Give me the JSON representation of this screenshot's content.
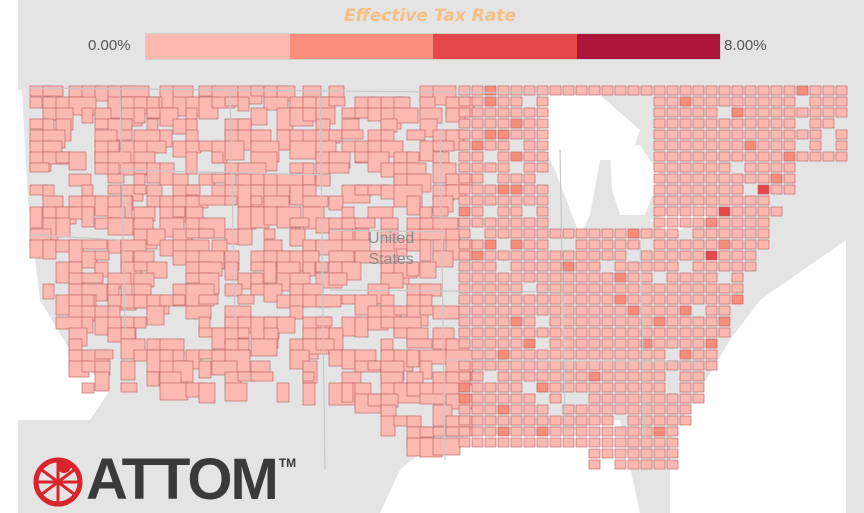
{
  "legend": {
    "title": "Effective Tax Rate",
    "min_label": "0.00%",
    "max_label": "8.00%",
    "colors": [
      "#fcb9b2",
      "#f88d7c",
      "#e4484a",
      "#aa1538"
    ]
  },
  "map": {
    "labels": {
      "country_line1": "United",
      "country_line2": "States"
    },
    "land_color": "#e4e4e4",
    "water_color": "#ffffff",
    "county_stroke": "#b85c5c"
  },
  "brand": {
    "logo_text": "ATTOM",
    "trademark": "TM",
    "logo_color": "#d9242c"
  }
}
